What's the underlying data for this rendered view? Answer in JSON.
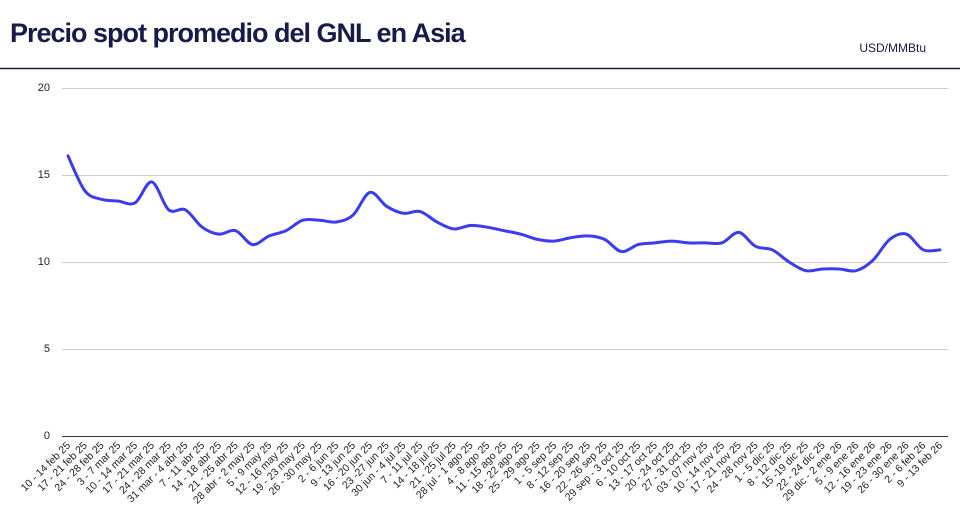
{
  "chart_data": {
    "type": "line",
    "title": "Precio spot promedio del GNL en Asia",
    "unit": "USD/MMBtu",
    "color": "#3b3bf0",
    "grid": true,
    "ylim": [
      0,
      20
    ],
    "yticks": [
      0,
      5,
      10,
      15,
      20
    ],
    "categories": [
      "10 - 14 feb 25",
      "17 - 21 feb 25",
      "24 - 28 feb 25",
      "3 - 7 mar 25",
      "10 - 14 mar 25",
      "17 - 21 mar 25",
      "24 - 28 mar 25",
      "31 mar - 4 abr 25",
      "7 - 11 abr 25",
      "14 - 18 abr 25",
      "21 - 25 abr 25",
      "28 abr - 2 may 25",
      "5 - 9 may 25",
      "12 - 16 may 25",
      "19 - 23 may 25",
      "26 - 30 may 25",
      "2 - 6 jun 25",
      "9 - 13 jun 25",
      "16 - 20 jun 25",
      "23 -27 jun 25",
      "30 jun - 4 jul 25",
      "7 - 11 jul 25",
      "14 - 18 jul 25",
      "21 - 25 jul 25",
      "28 jul - 1 ago 25",
      "4 - 8 ago 25",
      "11 - 15 ago 25",
      "18 - 22 ago 25",
      "25 - 29 ago 25",
      "1 - 5 sep 25",
      "8 - 12 sep 25",
      "16 - 20 sep 25",
      "22 - 26 sep 25",
      "29 sep - 3 oct 25",
      "6 - 10 oct 25",
      "13 - 17 oct 25",
      "20 - 24 oct 25",
      "27 - 31 oct 25",
      "03 - 07 nov 25",
      "10 - 14 nov 25",
      "17 - 21 nov 25",
      "24 - 28 nov 25",
      "1 - 5 dic 25",
      "8 - 12 dic 25",
      "15 -19 dic 25",
      "22 - 24 dic 25",
      "29 dic - 2 ene 26",
      "5 - 9 ene 26",
      "12 - 16 ene 26",
      "19 - 23 ene 26",
      "26 - 30 ene 26",
      "2 - 6 feb 26",
      "9 - 13 feb 26"
    ],
    "values": [
      16.1,
      14.1,
      13.6,
      13.5,
      13.4,
      14.6,
      13.0,
      13.0,
      12.0,
      11.6,
      11.8,
      11.0,
      11.5,
      11.8,
      12.4,
      12.4,
      12.3,
      12.7,
      14.0,
      13.2,
      12.8,
      12.9,
      12.3,
      11.9,
      12.1,
      12.0,
      11.8,
      11.6,
      11.3,
      11.2,
      11.4,
      11.5,
      11.3,
      10.6,
      11.0,
      11.1,
      11.2,
      11.1,
      11.1,
      11.1,
      11.7,
      10.9,
      10.7,
      10.0,
      9.5,
      9.6,
      9.6,
      9.5,
      10.1,
      11.3,
      11.6,
      10.7,
      10.7
    ]
  }
}
